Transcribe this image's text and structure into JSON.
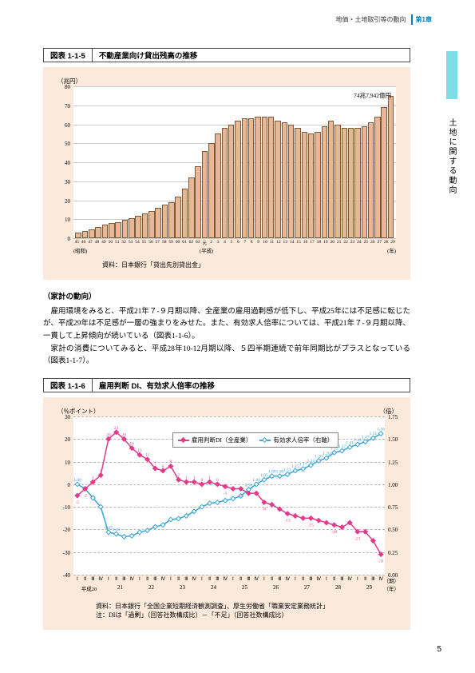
{
  "header": {
    "breadcrumb": "地価・土地取引等の動向",
    "chapter": "第1章"
  },
  "side_tab": {
    "label": "土地に関する動向"
  },
  "chart1": {
    "fig_num": "図表 1-1-5",
    "fig_title": "不動産業向け貸出残高の推移",
    "type": "bar",
    "y_unit": "（兆円）",
    "x_unit_left": "(昭和)",
    "x_unit_mid": "(平成)",
    "x_unit_right": "(年)",
    "peak_label": "74兆7,942億円",
    "ylim": [
      0,
      80
    ],
    "ytick_step": 10,
    "yticks": [
      0,
      10,
      20,
      30,
      40,
      50,
      60,
      70,
      80
    ],
    "categories": [
      "45",
      "46",
      "47",
      "48",
      "49",
      "50",
      "51",
      "52",
      "53",
      "54",
      "55",
      "56",
      "57",
      "58",
      "59",
      "60",
      "61",
      "62",
      "63",
      "元",
      "2",
      "3",
      "4",
      "5",
      "6",
      "7",
      "8",
      "9",
      "10",
      "11",
      "12",
      "13",
      "14",
      "15",
      "16",
      "17",
      "18",
      "19",
      "20",
      "21",
      "22",
      "23",
      "24",
      "25",
      "26",
      "27",
      "28",
      "29"
    ],
    "values": [
      3,
      4,
      4.5,
      6,
      7,
      8,
      8.5,
      9.5,
      10.5,
      12,
      13,
      14.5,
      16,
      17.5,
      19,
      22,
      26,
      32,
      38,
      46,
      50,
      55,
      58,
      60,
      62,
      63,
      63,
      64,
      64,
      64,
      62,
      61,
      60,
      58,
      56,
      55,
      56,
      59,
      62,
      60,
      58,
      58,
      58,
      59,
      61,
      64,
      69,
      74.8
    ],
    "bar_fill": "#e8b896",
    "bar_border": "#7a5a3a",
    "grid_color": "#cccccc",
    "background": "#ffffff",
    "panel_background": "#fbe9db",
    "source": "資料：日本銀行「貸出先別貸出金」"
  },
  "body": {
    "subhead": "（家計の動向）",
    "p1": "雇用環境をみると、平成21年７-９月期以降、全産業の雇用過剰感が低下し、平成25年には不足感に転じたが、平成29年は不足感が一層の強まりをみせた。また、有効求人倍率については、平成21年７-９月期以降、一貫して上昇傾向が続いている（図表1-1-6）。",
    "p2": "家計の消費についてみると、平成28年10-12月期以降、５四半期連続で前年同期比がプラスとなっている（図表1-1-7）。"
  },
  "chart2": {
    "fig_num": "図表 1-1-6",
    "fig_title": "雇用判断 DI、有効求人倍率の推移",
    "type": "line-dual-axis",
    "y_unit_left": "（％ポイント）",
    "y_unit_right": "（倍）",
    "x_label_q": "（期）",
    "x_label_y": "（年）",
    "left": {
      "ylim": [
        -40,
        30
      ],
      "ytick_step": 10,
      "yticks": [
        -40,
        -30,
        -20,
        -10,
        0,
        10,
        20,
        30
      ]
    },
    "right": {
      "ylim": [
        0,
        1.75
      ],
      "ytick_step": 0.25,
      "yticks": [
        "0.00",
        "0.25",
        "0.50",
        "0.75",
        "1.00",
        "1.25",
        "1.50",
        "1.75"
      ]
    },
    "quarters": [
      "Ⅰ",
      "Ⅱ",
      "Ⅲ",
      "Ⅳ",
      "Ⅰ",
      "Ⅱ",
      "Ⅲ",
      "Ⅳ",
      "Ⅰ",
      "Ⅱ",
      "Ⅲ",
      "Ⅳ",
      "Ⅰ",
      "Ⅱ",
      "Ⅲ",
      "Ⅳ",
      "Ⅰ",
      "Ⅱ",
      "Ⅲ",
      "Ⅳ",
      "Ⅰ",
      "Ⅱ",
      "Ⅲ",
      "Ⅳ",
      "Ⅰ",
      "Ⅱ",
      "Ⅲ",
      "Ⅳ",
      "Ⅰ",
      "Ⅱ",
      "Ⅲ",
      "Ⅳ",
      "Ⅰ",
      "Ⅱ",
      "Ⅲ",
      "Ⅳ",
      "Ⅰ",
      "Ⅱ",
      "Ⅲ",
      "Ⅳ"
    ],
    "years": [
      "平成20",
      "21",
      "22",
      "23",
      "24",
      "25",
      "26",
      "27",
      "28",
      "29"
    ],
    "series_di": {
      "name": "雇用判断DI（全産業）",
      "color": "#e33a8a",
      "marker": "square",
      "label_values": [
        "-5",
        "-2",
        "1",
        "4",
        "20",
        "23",
        "20",
        "16",
        "13",
        "11",
        "7",
        "6",
        "8",
        "2",
        "1",
        "1",
        "0",
        "1",
        "0",
        "-1",
        "-2",
        "-2",
        "-4",
        "-4",
        "-8",
        "-9",
        "-11",
        "-13",
        "-14",
        "-15",
        "-15",
        "-16",
        "-17",
        "-18",
        "-19",
        "-17",
        "-21",
        "-21",
        "-25",
        "-31"
      ],
      "values": [
        -5,
        -2,
        1,
        4,
        20,
        23,
        20,
        16,
        13,
        11,
        7,
        6,
        8,
        2,
        1,
        1,
        0,
        1,
        0,
        -1,
        -2,
        -2,
        -4,
        -4,
        -8,
        -9,
        -11,
        -13,
        -14,
        -15,
        -15,
        -16,
        -17,
        -18,
        -19,
        -17,
        -21,
        -21,
        -25,
        -31
      ]
    },
    "series_ratio": {
      "name": "有効求人倍率（右軸）",
      "color": "#3aa5d8",
      "marker": "diamond",
      "label_values": [
        "1.00",
        "0.95",
        "0.85",
        "0.75",
        "0.47",
        "0.45",
        "0.42",
        "0.43",
        "0.47",
        "0.49",
        "0.53",
        "0.55",
        "0.61",
        "0.62",
        "0.65",
        "0.70",
        "0.75",
        "0.79",
        "0.80",
        "0.82",
        "0.84",
        "0.87",
        "0.94",
        "1.00",
        "1.05",
        "1.09",
        "1.09",
        "1.11",
        "1.15",
        "1.17",
        "1.21",
        "1.26",
        "1.29",
        "1.35",
        "1.37",
        "1.41",
        "1.44",
        "1.47",
        "1.51",
        "1.56"
      ],
      "values": [
        1.0,
        0.95,
        0.85,
        0.75,
        0.47,
        0.45,
        0.42,
        0.43,
        0.47,
        0.49,
        0.53,
        0.55,
        0.61,
        0.62,
        0.65,
        0.7,
        0.75,
        0.79,
        0.8,
        0.82,
        0.84,
        0.87,
        0.94,
        1.0,
        1.05,
        1.09,
        1.09,
        1.11,
        1.15,
        1.17,
        1.21,
        1.26,
        1.29,
        1.35,
        1.37,
        1.41,
        1.44,
        1.47,
        1.51,
        1.56
      ]
    },
    "source1": "資料：日本銀行「全国企業短期経済観測調査」、厚生労働省「職業安定業務統計」",
    "source2": "注：DIは「過剰」（回答社数構成比）－「不足」（回答社数構成比）",
    "grid_color": "#bbbbbb",
    "background": "#ffffff",
    "panel_background": "#fbe9db"
  },
  "page_number": "5",
  "colors": {
    "accent_teal": "#7fdde8",
    "header_blue": "#0080c0"
  }
}
